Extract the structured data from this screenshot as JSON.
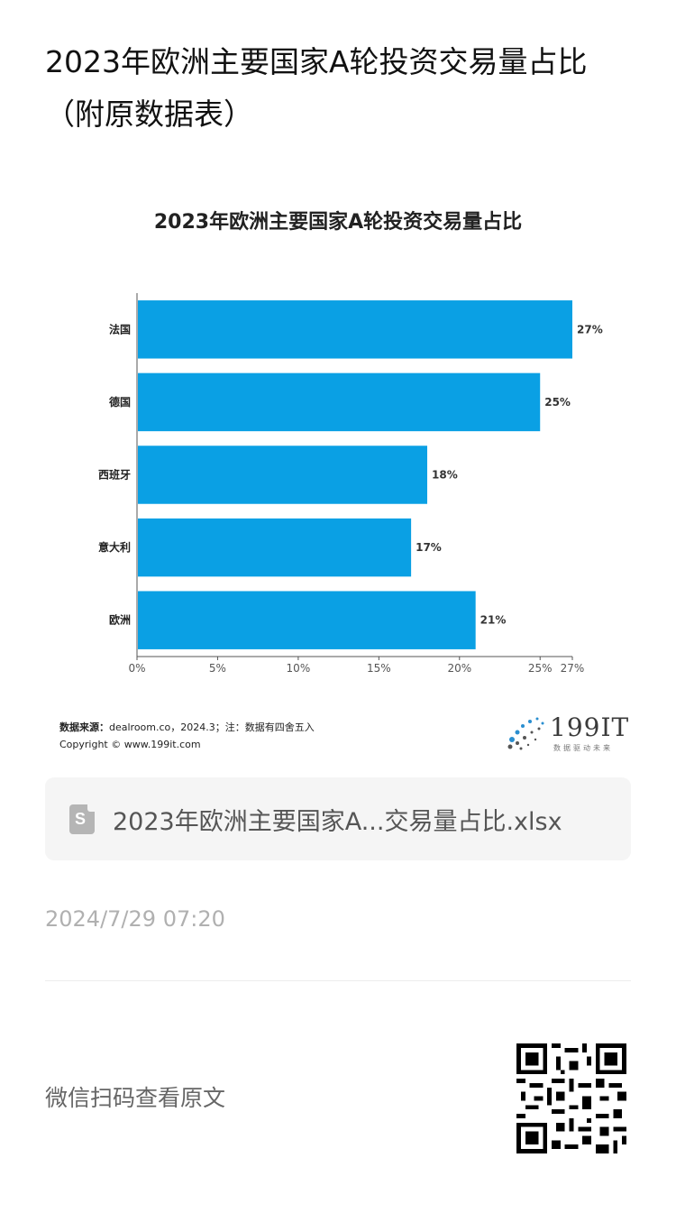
{
  "article": {
    "title": "2023年欧洲主要国家A轮投资交易量占比（附原数据表）"
  },
  "chart_data": {
    "type": "bar",
    "orientation": "horizontal",
    "title": "2023年欧洲主要国家A轮投资交易量占比",
    "categories": [
      "法国",
      "德国",
      "西班牙",
      "意大利",
      "欧洲"
    ],
    "values": [
      27,
      25,
      18,
      17,
      21
    ],
    "value_labels": [
      "27%",
      "25%",
      "18%",
      "17%",
      "21%"
    ],
    "xlim": [
      0,
      27
    ],
    "xticks": [
      0,
      5,
      10,
      15,
      20,
      25,
      27
    ],
    "xtick_labels": [
      "0%",
      "5%",
      "10%",
      "15%",
      "20%",
      "25%",
      "27%"
    ],
    "bar_color": "#0aa0e4",
    "grid": false
  },
  "source": {
    "label": "数据来源：",
    "text": "dealroom.co，2024.3；注：数据有四舍五入",
    "copyright": "Copyright © www.199it.com"
  },
  "logo": {
    "text": "199IT",
    "subtitle": "数据驱动未来"
  },
  "file": {
    "icon": "spreadsheet-file-icon",
    "name": "2023年欧洲主要国家A...交易量占比.xlsx"
  },
  "timestamp": "2024/7/29 07:20",
  "footer": {
    "wechat_text": "微信扫码查看原文",
    "qr_icon": "qr-code"
  }
}
